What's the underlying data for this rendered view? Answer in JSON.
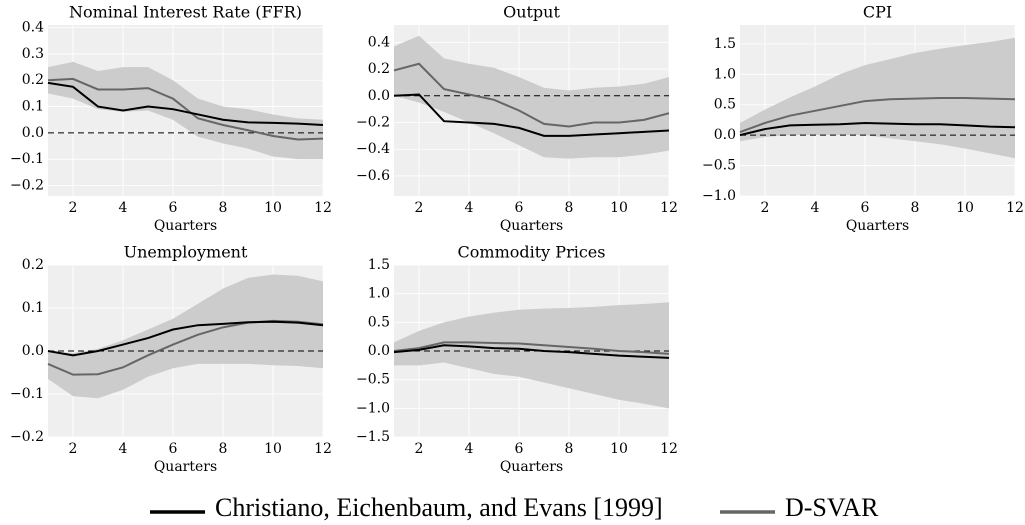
{
  "chart_data": [
    {
      "type": "line",
      "title": "Nominal Interest Rate (FFR)",
      "xlabel": "Quarters",
      "x": [
        1,
        2,
        3,
        4,
        5,
        6,
        7,
        8,
        9,
        10,
        11,
        12
      ],
      "xlim": [
        1,
        12
      ],
      "xticks": [
        2,
        4,
        6,
        8,
        10,
        12
      ],
      "ylim": [
        -0.24,
        0.41
      ],
      "yticks": [
        {
          "value": -0.2,
          "label": "−0.2"
        },
        {
          "value": -0.1,
          "label": "−0.1"
        },
        {
          "value": 0,
          "label": "0.0"
        },
        0.1,
        0.2,
        0.3,
        0.4
      ],
      "grid": true,
      "band": {
        "color": "#cccccc",
        "lower": [
          0.15,
          0.13,
          0.09,
          0.08,
          0.085,
          0.05,
          -0.015,
          -0.04,
          -0.06,
          -0.09,
          -0.1,
          -0.1
        ],
        "upper": [
          0.25,
          0.27,
          0.235,
          0.25,
          0.25,
          0.2,
          0.13,
          0.1,
          0.09,
          0.07,
          0.055,
          0.05
        ]
      },
      "series": [
        {
          "name": "Christiano, Eichenbaum, and Evans [1999]",
          "color": "#000000",
          "values": [
            0.19,
            0.175,
            0.1,
            0.085,
            0.1,
            0.09,
            0.07,
            0.05,
            0.04,
            0.038,
            0.035,
            0.03
          ]
        },
        {
          "name": "D-SVAR",
          "color": "#666666",
          "values": [
            0.2,
            0.205,
            0.165,
            0.165,
            0.17,
            0.13,
            0.055,
            0.03,
            0.01,
            -0.012,
            -0.025,
            -0.022
          ]
        }
      ]
    },
    {
      "type": "line",
      "title": "Output",
      "xlabel": "Quarters",
      "x": [
        1,
        2,
        3,
        4,
        5,
        6,
        7,
        8,
        9,
        10,
        11,
        12
      ],
      "xlim": [
        1,
        12
      ],
      "xticks": [
        2,
        4,
        6,
        8,
        10,
        12
      ],
      "ylim": [
        -0.75,
        0.53
      ],
      "yticks": [
        {
          "value": -0.6,
          "label": "−0.6"
        },
        {
          "value": -0.4,
          "label": "−0.4"
        },
        {
          "value": -0.2,
          "label": "−0.2"
        },
        {
          "value": 0,
          "label": "0.0"
        },
        0.2,
        0.4
      ],
      "grid": true,
      "band": {
        "color": "#cccccc",
        "lower": [
          0.0,
          -0.05,
          -0.12,
          -0.2,
          -0.28,
          -0.37,
          -0.46,
          -0.47,
          -0.46,
          -0.46,
          -0.44,
          -0.41
        ],
        "upper": [
          0.37,
          0.45,
          0.28,
          0.24,
          0.21,
          0.14,
          0.06,
          0.04,
          0.06,
          0.07,
          0.09,
          0.14
        ]
      },
      "series": [
        {
          "name": "Christiano, Eichenbaum, and Evans [1999]",
          "color": "#000000",
          "values": [
            0,
            0.01,
            -0.19,
            -0.2,
            -0.21,
            -0.24,
            -0.3,
            -0.3,
            -0.29,
            -0.28,
            -0.27,
            -0.26
          ]
        },
        {
          "name": "D-SVAR",
          "color": "#666666",
          "values": [
            0.19,
            0.24,
            0.05,
            0.01,
            -0.03,
            -0.11,
            -0.21,
            -0.23,
            -0.2,
            -0.2,
            -0.18,
            -0.13
          ]
        }
      ]
    },
    {
      "type": "line",
      "title": "CPI",
      "xlabel": "Quarters",
      "x": [
        1,
        2,
        3,
        4,
        5,
        6,
        7,
        8,
        9,
        10,
        11,
        12
      ],
      "xlim": [
        1,
        12
      ],
      "xticks": [
        2,
        4,
        6,
        8,
        10,
        12
      ],
      "ylim": [
        -1.0,
        1.81
      ],
      "yticks": [
        {
          "value": -1,
          "label": "−1.0"
        },
        {
          "value": -0.5,
          "label": "−0.5"
        },
        {
          "value": 0,
          "label": "0.0"
        },
        0.5,
        {
          "value": 1,
          "label": "1.0"
        },
        1.5
      ],
      "grid": true,
      "band": {
        "color": "#cccccc",
        "lower": [
          -0.1,
          -0.03,
          0,
          0,
          0,
          0,
          -0.05,
          -0.1,
          -0.15,
          -0.22,
          -0.3,
          -0.38
        ],
        "upper": [
          0.2,
          0.42,
          0.62,
          0.8,
          1.0,
          1.15,
          1.25,
          1.35,
          1.42,
          1.48,
          1.53,
          1.6
        ]
      },
      "series": [
        {
          "name": "Christiano, Eichenbaum, and Evans [1999]",
          "color": "#000000",
          "values": [
            0.0,
            0.1,
            0.16,
            0.17,
            0.18,
            0.2,
            0.19,
            0.18,
            0.18,
            0.16,
            0.14,
            0.13
          ]
        },
        {
          "name": "D-SVAR",
          "color": "#666666",
          "values": [
            0.05,
            0.2,
            0.32,
            0.4,
            0.48,
            0.56,
            0.59,
            0.6,
            0.61,
            0.61,
            0.6,
            0.59
          ]
        }
      ]
    },
    {
      "type": "line",
      "title": "Unemployment",
      "xlabel": "Quarters",
      "x": [
        1,
        2,
        3,
        4,
        5,
        6,
        7,
        8,
        9,
        10,
        11,
        12
      ],
      "xlim": [
        1,
        12
      ],
      "xticks": [
        2,
        4,
        6,
        8,
        10,
        12
      ],
      "ylim": [
        -0.2,
        0.2
      ],
      "yticks": [
        {
          "value": -0.2,
          "label": "−0.2"
        },
        {
          "value": -0.1,
          "label": "−0.1"
        },
        {
          "value": 0,
          "label": "0.0"
        },
        0.1,
        0.2
      ],
      "grid": true,
      "band": {
        "color": "#cccccc",
        "lower": [
          -0.065,
          -0.105,
          -0.11,
          -0.09,
          -0.06,
          -0.04,
          -0.03,
          -0.03,
          -0.03,
          -0.033,
          -0.035,
          -0.04
        ],
        "upper": [
          0.0,
          -0.005,
          0.005,
          0.025,
          0.05,
          0.075,
          0.11,
          0.145,
          0.17,
          0.178,
          0.175,
          0.162
        ]
      },
      "series": [
        {
          "name": "Christiano, Eichenbaum, and Evans [1999]",
          "color": "#000000",
          "values": [
            0,
            -0.01,
            0.0,
            0.015,
            0.03,
            0.05,
            0.06,
            0.063,
            0.067,
            0.068,
            0.066,
            0.06
          ]
        },
        {
          "name": "D-SVAR",
          "color": "#666666",
          "values": [
            -0.03,
            -0.055,
            -0.054,
            -0.038,
            -0.01,
            0.015,
            0.038,
            0.055,
            0.066,
            0.07,
            0.068,
            0.062
          ]
        }
      ]
    },
    {
      "type": "line",
      "title": "Commodity Prices",
      "xlabel": "Quarters",
      "x": [
        1,
        2,
        3,
        4,
        5,
        6,
        7,
        8,
        9,
        10,
        11,
        12
      ],
      "xlim": [
        1,
        12
      ],
      "xticks": [
        2,
        4,
        6,
        8,
        10,
        12
      ],
      "ylim": [
        -1.5,
        1.5
      ],
      "yticks": [
        {
          "value": -1.5,
          "label": "−1.5"
        },
        {
          "value": -1,
          "label": "−1.0"
        },
        {
          "value": -0.5,
          "label": "−0.5"
        },
        {
          "value": 0,
          "label": "0.0"
        },
        0.5,
        {
          "value": 1,
          "label": "1.0"
        },
        1.5
      ],
      "grid": true,
      "band": {
        "color": "#cccccc",
        "lower": [
          -0.25,
          -0.25,
          -0.2,
          -0.3,
          -0.4,
          -0.45,
          -0.55,
          -0.65,
          -0.75,
          -0.85,
          -0.92,
          -1.0
        ],
        "upper": [
          0.15,
          0.35,
          0.5,
          0.6,
          0.67,
          0.72,
          0.74,
          0.75,
          0.77,
          0.8,
          0.82,
          0.85
        ]
      },
      "series": [
        {
          "name": "Christiano, Eichenbaum, and Evans [1999]",
          "color": "#000000",
          "values": [
            -0.02,
            0.02,
            0.1,
            0.08,
            0.05,
            0.04,
            0.0,
            -0.02,
            -0.05,
            -0.08,
            -0.1,
            -0.12
          ]
        },
        {
          "name": "D-SVAR",
          "color": "#666666",
          "values": [
            0.0,
            0.05,
            0.15,
            0.15,
            0.14,
            0.13,
            0.1,
            0.07,
            0.04,
            0.0,
            -0.02,
            -0.05
          ]
        }
      ]
    }
  ]
}
